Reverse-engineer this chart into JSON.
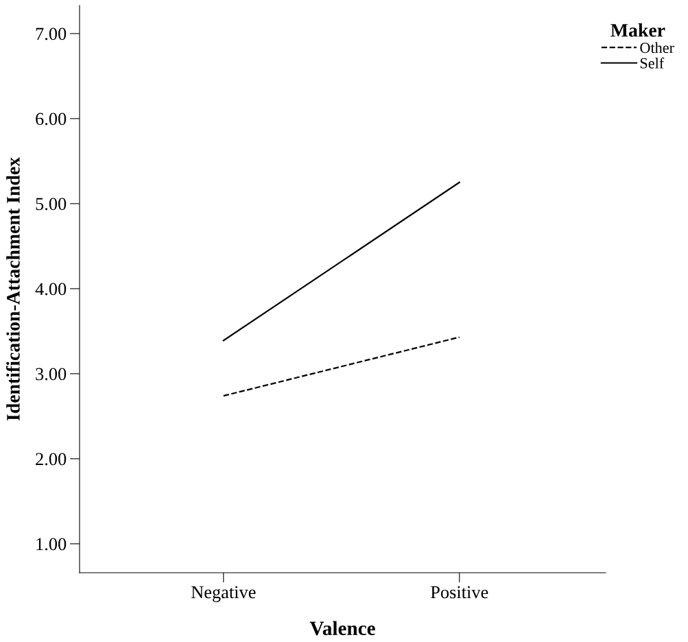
{
  "chart_data": {
    "type": "line",
    "xlabel": "Valence",
    "ylabel": "Identification-Attachment Index",
    "legend_title": "Maker",
    "categories": [
      "Negative",
      "Positive"
    ],
    "series": [
      {
        "name": "Other",
        "color": "#000000",
        "line_style": "dashed",
        "values": [
          2.74,
          3.43
        ]
      },
      {
        "name": "Self",
        "color": "#000000",
        "line_style": "solid",
        "values": [
          3.39,
          5.25
        ]
      }
    ],
    "ylim": [
      0.66,
      7.33
    ],
    "yticks": [
      {
        "value": 1,
        "label": "1.00"
      },
      {
        "value": 2,
        "label": "2.00"
      },
      {
        "value": 3,
        "label": "3.00"
      },
      {
        "value": 4,
        "label": "4.00"
      },
      {
        "value": 5,
        "label": "5.00"
      },
      {
        "value": 6,
        "label": "6.00"
      },
      {
        "value": 7,
        "label": "7.00"
      }
    ],
    "grid": false,
    "legend": "top right",
    "marker": "none"
  }
}
